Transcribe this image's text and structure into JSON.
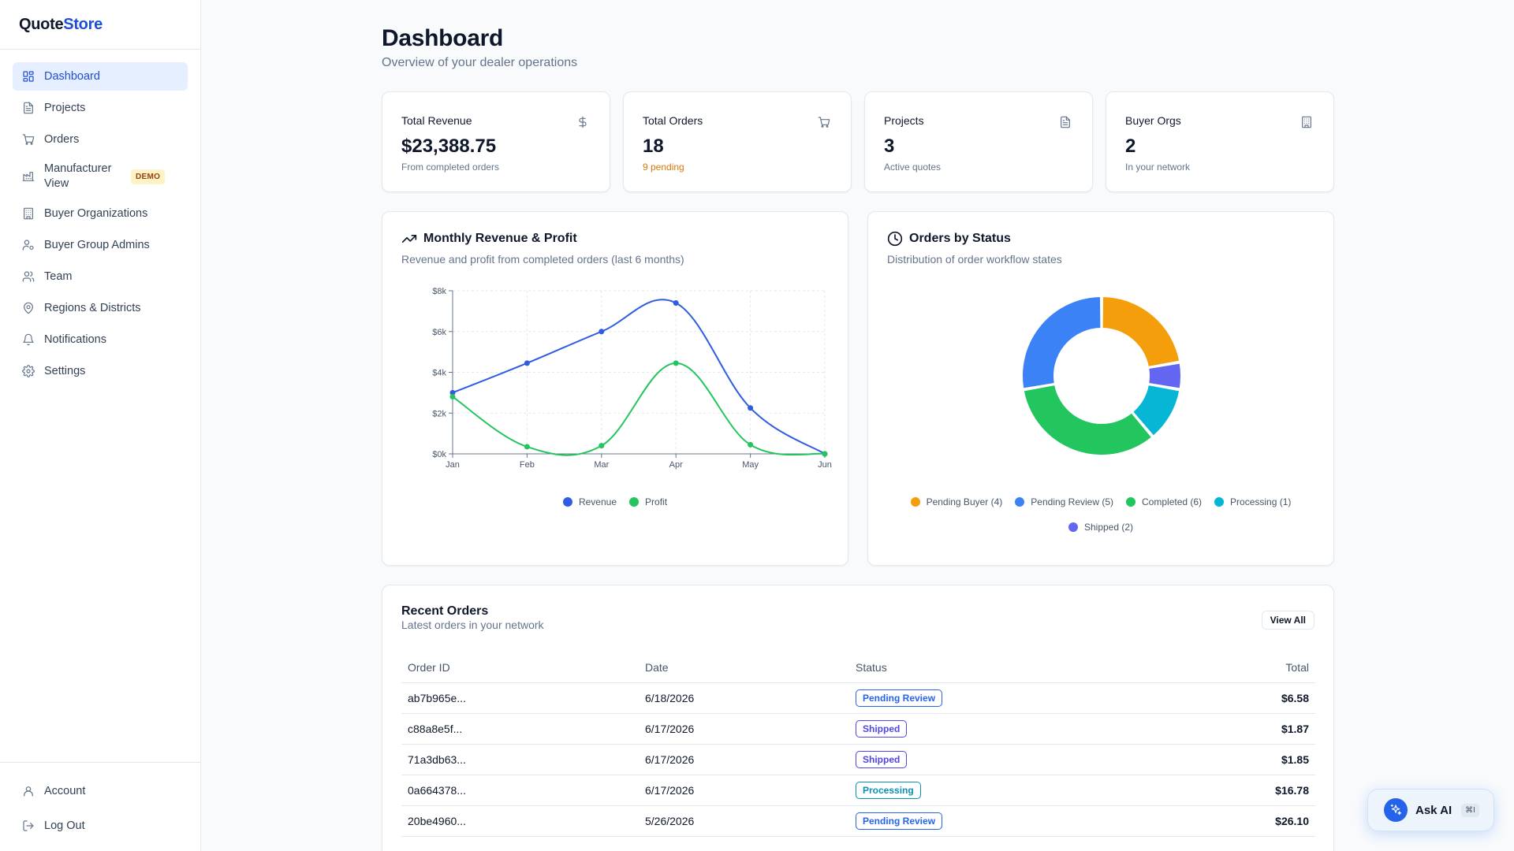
{
  "brand": {
    "part1": "Quote",
    "part2": "Store"
  },
  "sidebar": {
    "items": [
      {
        "label": "Dashboard",
        "icon": "layout-grid-icon",
        "active": true
      },
      {
        "label": "Projects",
        "icon": "file-text-icon"
      },
      {
        "label": "Orders",
        "icon": "shopping-cart-icon"
      },
      {
        "label": "Manufacturer View",
        "icon": "factory-icon",
        "badge": "DEMO"
      },
      {
        "label": "Buyer Organizations",
        "icon": "building-icon"
      },
      {
        "label": "Buyer Group Admins",
        "icon": "user-cog-icon"
      },
      {
        "label": "Team",
        "icon": "users-icon"
      },
      {
        "label": "Regions & Districts",
        "icon": "map-pin-icon"
      },
      {
        "label": "Notifications",
        "icon": "bell-icon"
      },
      {
        "label": "Settings",
        "icon": "gear-icon"
      }
    ],
    "bottom": [
      {
        "label": "Account",
        "icon": "user-icon"
      },
      {
        "label": "Log Out",
        "icon": "log-out-icon"
      }
    ]
  },
  "header": {
    "title": "Dashboard",
    "subtitle": "Overview of your dealer operations"
  },
  "stats": [
    {
      "label": "Total Revenue",
      "value": "$23,388.75",
      "sub": "From completed orders",
      "icon": "dollar-icon"
    },
    {
      "label": "Total Orders",
      "value": "18",
      "sub": "9 pending",
      "icon": "shopping-cart-icon",
      "sub_color": "#d97706"
    },
    {
      "label": "Projects",
      "value": "3",
      "sub": "Active quotes",
      "icon": "file-text-icon"
    },
    {
      "label": "Buyer Orgs",
      "value": "2",
      "sub": "In your network",
      "icon": "building-icon"
    }
  ],
  "revenue_chart": {
    "title": "Monthly Revenue & Profit",
    "subtitle": "Revenue and profit from completed orders (last 6 months)",
    "icon": "trending-up-icon"
  },
  "status_chart": {
    "title": "Orders by Status",
    "subtitle": "Distribution of order workflow states",
    "icon": "clock-icon"
  },
  "chart_data": [
    {
      "type": "line",
      "categories": [
        "Jan",
        "Feb",
        "Mar",
        "Apr",
        "May",
        "Jun"
      ],
      "y_tick_labels": [
        "$0k",
        "$2k",
        "$4k",
        "$6k",
        "$8k"
      ],
      "ylim": [
        0,
        8000
      ],
      "grid": true,
      "legend_position": "bottom",
      "series": [
        {
          "name": "Revenue",
          "color": "#2f5ce0",
          "values": [
            3000,
            4450,
            6000,
            7400,
            2250,
            0
          ]
        },
        {
          "name": "Profit",
          "color": "#22c55e",
          "values": [
            2800,
            350,
            400,
            4450,
            450,
            0
          ]
        }
      ]
    },
    {
      "type": "pie",
      "donut": true,
      "legend_position": "bottom",
      "slices": [
        {
          "label": "Pending Buyer (4)",
          "value": 4,
          "color": "#f59e0b"
        },
        {
          "label": "Processing (1)",
          "value": 1,
          "color": "#6366f1"
        },
        {
          "label": "Shipped (2)",
          "value": 2,
          "color": "#06b6d4"
        },
        {
          "label": "Completed (6)",
          "value": 6,
          "color": "#22c55e"
        },
        {
          "label": "Pending Review (5)",
          "value": 5,
          "color": "#3b82f6"
        }
      ],
      "legend": [
        {
          "label": "Pending Buyer (4)",
          "color": "#f59e0b"
        },
        {
          "label": "Pending Review (5)",
          "color": "#3b82f6"
        },
        {
          "label": "Completed (6)",
          "color": "#22c55e"
        },
        {
          "label": "Processing (1)",
          "color": "#06b6d4"
        },
        {
          "label": "Shipped (2)",
          "color": "#6366f1"
        }
      ]
    }
  ],
  "orders": {
    "title": "Recent Orders",
    "subtitle": "Latest orders in your network",
    "view_all_label": "View All",
    "columns": [
      "Order ID",
      "Date",
      "Status",
      "Total"
    ],
    "rows": [
      {
        "id": "ab7b965e...",
        "date": "6/18/2026",
        "status": "Pending Review",
        "total": "$6.58",
        "color": "#2563eb"
      },
      {
        "id": "c88a8e5f...",
        "date": "6/17/2026",
        "status": "Shipped",
        "total": "$1.87",
        "color": "#4f46e5"
      },
      {
        "id": "71a3db63...",
        "date": "6/17/2026",
        "status": "Shipped",
        "total": "$1.85",
        "color": "#4f46e5"
      },
      {
        "id": "0a664378...",
        "date": "6/17/2026",
        "status": "Processing",
        "total": "$16.78",
        "color": "#0891b2"
      },
      {
        "id": "20be4960...",
        "date": "5/26/2026",
        "status": "Pending Review",
        "total": "$26.10",
        "color": "#2563eb"
      }
    ]
  },
  "ask_ai": {
    "label": "Ask AI",
    "shortcut": "⌘I",
    "icon": "sparkle-icon"
  }
}
